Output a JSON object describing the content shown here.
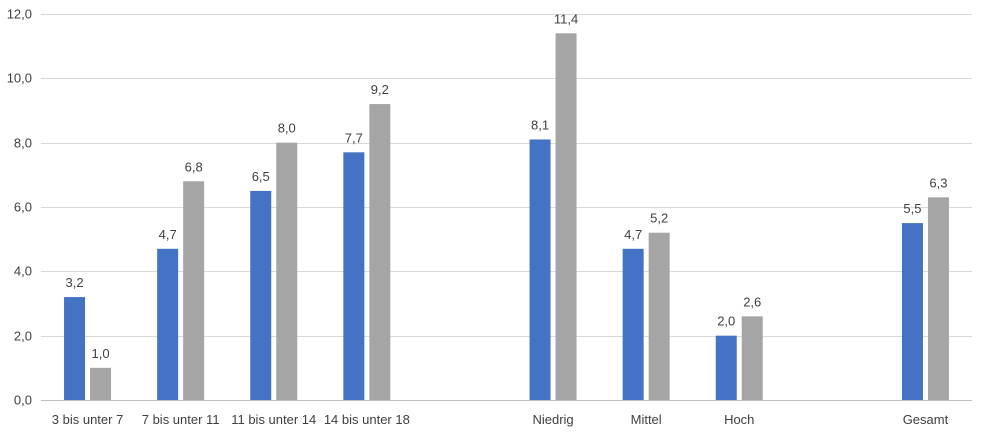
{
  "chart_data": {
    "type": "bar",
    "title": "",
    "xlabel": "",
    "ylabel": "",
    "ylim": [
      0,
      12
    ],
    "yticks": [
      "0,0",
      "2,0",
      "4,0",
      "6,0",
      "8,0",
      "10,0",
      "12,0"
    ],
    "grid": true,
    "legend": "none",
    "categories": [
      "3 bis unter 7",
      "7 bis unter 11",
      "11 bis unter 14",
      "14 bis unter 18",
      "",
      "Niedrig",
      "Mittel",
      "Hoch",
      "",
      "Gesamt"
    ],
    "series": [
      {
        "color": "#4472C4",
        "values": [
          3.2,
          4.7,
          6.5,
          7.7,
          null,
          8.1,
          4.7,
          2.0,
          null,
          5.5
        ],
        "labels": [
          "3,2",
          "4,7",
          "6,5",
          "7,7",
          "",
          "8,1",
          "4,7",
          "2,0",
          "",
          "5,5"
        ]
      },
      {
        "color": "#A5A5A5",
        "values": [
          1.0,
          6.8,
          8.0,
          9.2,
          null,
          11.4,
          5.2,
          2.6,
          null,
          6.3
        ],
        "labels": [
          "1,0",
          "6,8",
          "8,0",
          "9,2",
          "",
          "11,4",
          "5,2",
          "2,6",
          "",
          "6,3"
        ]
      }
    ]
  }
}
